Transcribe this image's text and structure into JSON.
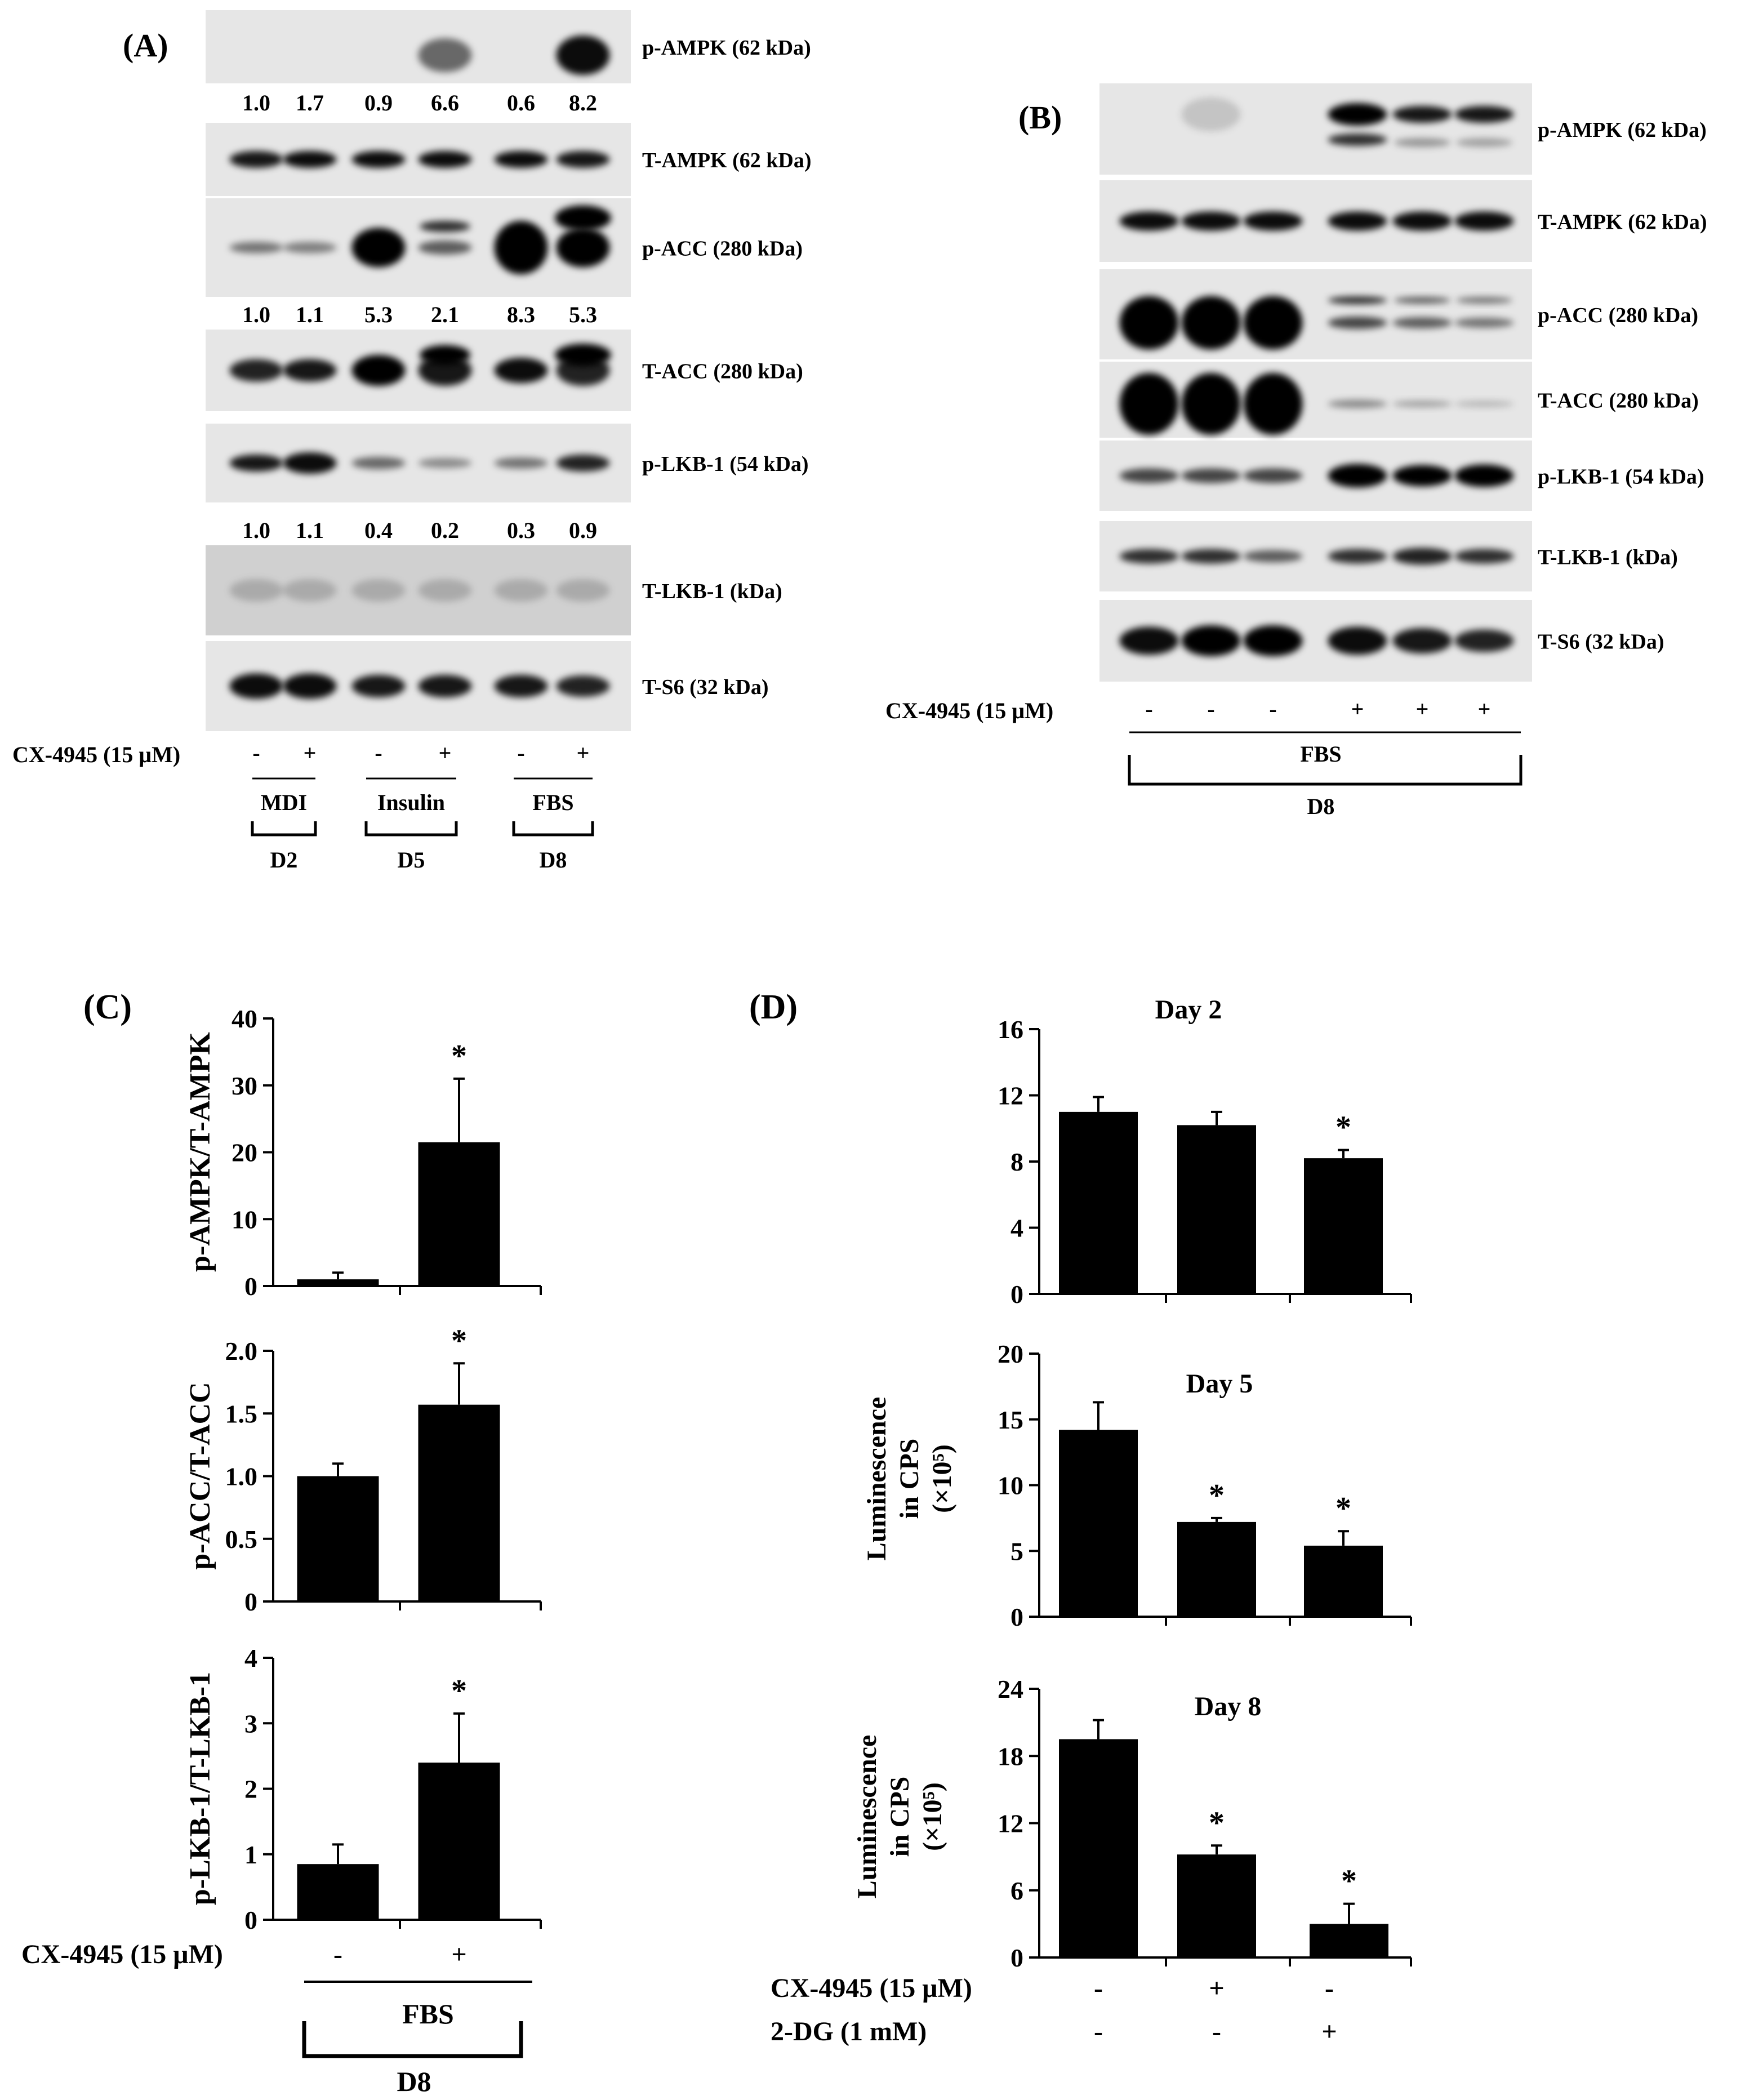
{
  "panels": {
    "A": {
      "label": "(A)",
      "rows": [
        {
          "name": "p-AMPK (62 kDa)",
          "quant": [
            "1.0",
            "1.7",
            "0.9",
            "6.6",
            "0.6",
            "8.2"
          ]
        },
        {
          "name": "T-AMPK (62 kDa)"
        },
        {
          "name": "p-ACC (280 kDa)",
          "quant": [
            "1.0",
            "1.1",
            "5.3",
            "2.1",
            "8.3",
            "5.3"
          ]
        },
        {
          "name": "T-ACC (280 kDa)"
        },
        {
          "name": "p-LKB-1 (54 kDa)",
          "quant": [
            "1.0",
            "1.1",
            "0.4",
            "0.2",
            "0.3",
            "0.9"
          ]
        },
        {
          "name": "T-LKB-1 (kDa)"
        },
        {
          "name": "T-S6 (32 kDa)"
        }
      ],
      "treatment_label": "CX-4945 (15 μM)",
      "signs": [
        "-",
        "+",
        "-",
        "+",
        "-",
        "+"
      ],
      "groups": [
        {
          "condition": "MDI",
          "day": "D2"
        },
        {
          "condition": "Insulin",
          "day": "D5"
        },
        {
          "condition": "FBS",
          "day": "D8"
        }
      ]
    },
    "B": {
      "label": "(B)",
      "rows": [
        {
          "name": "p-AMPK (62 kDa)"
        },
        {
          "name": "T-AMPK (62 kDa)"
        },
        {
          "name": "p-ACC (280 kDa)"
        },
        {
          "name": "T-ACC (280 kDa)"
        },
        {
          "name": "p-LKB-1 (54 kDa)"
        },
        {
          "name": "T-LKB-1 (kDa)"
        },
        {
          "name": "T-S6 (32 kDa)"
        }
      ],
      "treatment_label": "CX-4945 (15 μM)",
      "signs": [
        "-",
        "-",
        "-",
        "+",
        "+",
        "+"
      ],
      "condition": "FBS",
      "day": "D8"
    },
    "C": {
      "label": "(C)",
      "treatment_label": "CX-4945 (15 μM)",
      "signs": [
        "-",
        "+"
      ],
      "condition": "FBS",
      "day": "D8"
    },
    "D": {
      "label": "(D)",
      "cx_label": "CX-4945 (15 μM)",
      "cx_signs": [
        "-",
        "+",
        "-"
      ],
      "dg_label": "2-DG (1 mM)",
      "dg_signs": [
        "-",
        "-",
        "+"
      ]
    }
  },
  "chart_data": [
    {
      "panel": "C",
      "type": "bar",
      "ylabel": "p-AMPK/T-AMPK",
      "ylim": [
        0,
        40
      ],
      "yticks": [
        "0",
        "10",
        "20",
        "30",
        "40"
      ],
      "values": [
        1.0,
        21.5
      ],
      "errors": [
        1.0,
        9.5
      ],
      "significance": [
        "",
        "*"
      ]
    },
    {
      "panel": "C",
      "type": "bar",
      "ylabel": "p-ACC/T-ACC",
      "ylim": [
        0,
        2.0
      ],
      "yticks": [
        "0",
        "0.5",
        "1.0",
        "1.5",
        "2.0"
      ],
      "values": [
        1.0,
        1.57
      ],
      "errors": [
        0.1,
        0.33
      ],
      "significance": [
        "",
        "*"
      ]
    },
    {
      "panel": "C",
      "type": "bar",
      "ylabel": "p-LKB-1/T-LKB-1",
      "ylim": [
        0,
        4
      ],
      "yticks": [
        "0",
        "1",
        "2",
        "3",
        "4"
      ],
      "values": [
        0.85,
        2.4
      ],
      "errors": [
        0.3,
        0.75
      ],
      "significance": [
        "",
        "*"
      ]
    },
    {
      "panel": "D",
      "type": "bar",
      "title": "Day 2",
      "ylabel": "",
      "ylim": [
        0,
        16
      ],
      "yticks": [
        "0",
        "4",
        "8",
        "12",
        "16"
      ],
      "values": [
        11.0,
        10.2,
        8.2
      ],
      "errors": [
        0.9,
        0.8,
        0.5
      ],
      "significance": [
        "",
        "",
        "*"
      ]
    },
    {
      "panel": "D",
      "type": "bar",
      "title": "Day 5",
      "ylabel": "Luminescence in CPS (×10⁵)",
      "ylim": [
        0,
        20
      ],
      "yticks": [
        "0",
        "5",
        "10",
        "15",
        "20"
      ],
      "values": [
        14.2,
        7.2,
        5.4
      ],
      "errors": [
        2.1,
        0.3,
        1.1
      ],
      "significance": [
        "",
        "*",
        "*"
      ]
    },
    {
      "panel": "D",
      "type": "bar",
      "title": "Day 8",
      "ylabel": "Luminescence in CPS (×10⁵)",
      "ylim": [
        0,
        24
      ],
      "yticks": [
        "0",
        "6",
        "12",
        "18",
        "24"
      ],
      "values": [
        19.5,
        9.2,
        3.0
      ],
      "errors": [
        1.7,
        0.8,
        1.8
      ],
      "significance": [
        "",
        "*",
        "*"
      ]
    }
  ]
}
